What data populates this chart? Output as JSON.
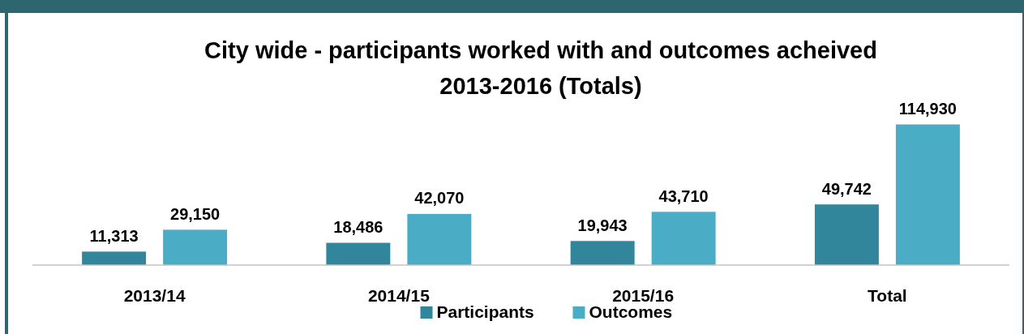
{
  "chart_data": {
    "type": "bar",
    "title": "City wide - participants worked with and outcomes acheived\n2013-2016 (Totals)",
    "categories": [
      "2013/14",
      "2014/15",
      "2015/16",
      "Total"
    ],
    "series": [
      {
        "name": "Participants",
        "color": "#31869b",
        "values": [
          11313,
          18486,
          19943,
          49742
        ],
        "value_labels": [
          "11,313",
          "18,486",
          "19,943",
          "49,742"
        ]
      },
      {
        "name": "Outcomes",
        "color": "#4bacc6",
        "values": [
          29150,
          42070,
          43710,
          114930
        ],
        "value_labels": [
          "29,150",
          "42,070",
          "43,710",
          "114,930"
        ]
      }
    ],
    "legend": "bottom"
  }
}
